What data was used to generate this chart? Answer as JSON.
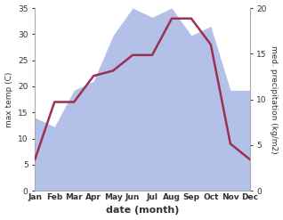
{
  "months": [
    "Jan",
    "Feb",
    "Mar",
    "Apr",
    "May",
    "Jun",
    "Jul",
    "Aug",
    "Sep",
    "Oct",
    "Nov",
    "Dec"
  ],
  "month_positions": [
    0,
    1,
    2,
    3,
    4,
    5,
    6,
    7,
    8,
    9,
    10,
    11
  ],
  "temperature": [
    6,
    17,
    17,
    22,
    23,
    26,
    26,
    33,
    33,
    28,
    9,
    6
  ],
  "precipitation": [
    8,
    7,
    11,
    12,
    17,
    20,
    19,
    20,
    17,
    18,
    11,
    11
  ],
  "temp_ylim": [
    0,
    35
  ],
  "precip_ylim": [
    0,
    20
  ],
  "temp_yticks": [
    0,
    5,
    10,
    15,
    20,
    25,
    30,
    35
  ],
  "precip_yticks": [
    0,
    5,
    10,
    15,
    20
  ],
  "temp_color": "#9B3050",
  "fill_color": "#b3c0e8",
  "xlabel": "date (month)",
  "ylabel_left": "max temp (C)",
  "ylabel_right": "med. precipitation (kg/m2)",
  "bg_color": "#ffffff",
  "line_width": 1.8,
  "fill_alpha": 1.0
}
